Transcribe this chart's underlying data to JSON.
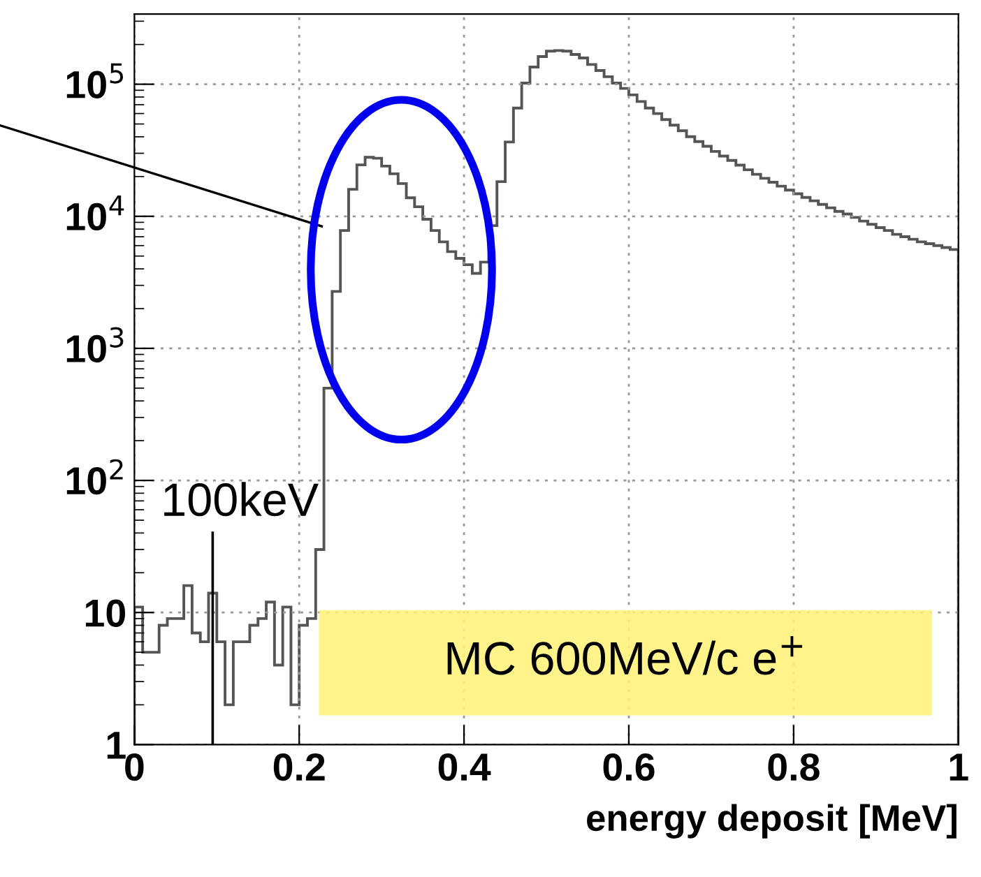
{
  "chart_data": {
    "type": "histogram",
    "xlabel": "energy deposit [MeV]",
    "bins": [
      0,
      0.01,
      0.02,
      0.03,
      0.04,
      0.05,
      0.06,
      0.07,
      0.08,
      0.09,
      0.1,
      0.11,
      0.12,
      0.13,
      0.14,
      0.15,
      0.16,
      0.17,
      0.18,
      0.19,
      0.2,
      0.21,
      0.22,
      0.23,
      0.24,
      0.25,
      0.26,
      0.27,
      0.28,
      0.29,
      0.3,
      0.31,
      0.32,
      0.33,
      0.34,
      0.35,
      0.36,
      0.37,
      0.38,
      0.39,
      0.4,
      0.41,
      0.42,
      0.43,
      0.44,
      0.45,
      0.46,
      0.47,
      0.48,
      0.49,
      0.5,
      0.51,
      0.52,
      0.53,
      0.54,
      0.55,
      0.56,
      0.57,
      0.58,
      0.59,
      0.6,
      0.61,
      0.62,
      0.63,
      0.64,
      0.65,
      0.66,
      0.67,
      0.68,
      0.69,
      0.7,
      0.71,
      0.72,
      0.73,
      0.74,
      0.75,
      0.76,
      0.77,
      0.78,
      0.79,
      0.8,
      0.81,
      0.82,
      0.83,
      0.84,
      0.85,
      0.86,
      0.87,
      0.88,
      0.89,
      0.9,
      0.91,
      0.92,
      0.93,
      0.94,
      0.95,
      0.96,
      0.97,
      0.98,
      0.99,
      1.0
    ],
    "values": [
      11,
      5,
      5,
      8,
      9,
      9,
      16,
      7,
      6,
      14,
      6,
      2,
      6,
      6,
      8,
      9,
      12,
      4,
      11,
      2,
      8,
      9,
      30,
      500,
      2700,
      7800,
      16000,
      24500,
      28000,
      27500,
      24000,
      21000,
      17700,
      13800,
      11800,
      9500,
      7800,
      6400,
      5400,
      4800,
      4300,
      3700,
      4500,
      8500,
      18300,
      36500,
      66000,
      102000,
      135000,
      162000,
      178000,
      180000,
      178000,
      168000,
      158000,
      141000,
      127000,
      114000,
      102000,
      93000,
      83000,
      74000,
      66000,
      60000,
      54000,
      49000,
      44400,
      40100,
      36800,
      33900,
      31000,
      28600,
      26500,
      24400,
      22500,
      20800,
      19400,
      18100,
      16900,
      15800,
      14800,
      13900,
      13100,
      12300,
      11600,
      10900,
      10400,
      9800,
      9200,
      8700,
      8200,
      7800,
      7300,
      7000,
      6700,
      6400,
      6200,
      6000,
      5800,
      5600
    ],
    "color": "#555555",
    "log": "y",
    "xlim": [
      0,
      1
    ],
    "xticks": [
      0,
      0.2,
      0.4,
      0.6,
      0.8,
      1
    ],
    "ylim": [
      1,
      340000
    ],
    "yticks": [
      1,
      10,
      {
        "value": 100,
        "label": "10$^{2}$"
      },
      {
        "value": 1000,
        "label": "10$^{3}$"
      },
      {
        "value": 10000,
        "label": "10$^{4}$"
      },
      {
        "value": 100000,
        "label": "10$^{5}$"
      }
    ],
    "grid": true,
    "annotations": [
      "100keV",
      "MC 600MeV/c e$^{+}$"
    ]
  }
}
